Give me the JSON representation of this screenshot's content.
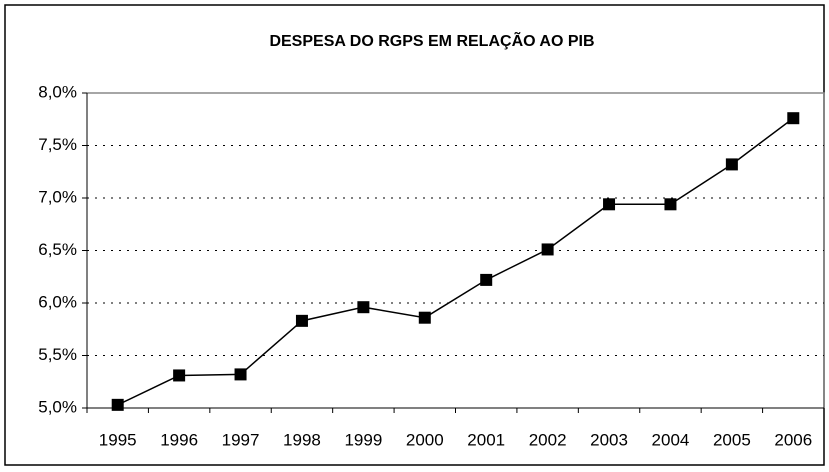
{
  "chart_data": {
    "type": "line",
    "title": "DESPESA DO RGPS EM RELAÇÃO AO PIB",
    "categories": [
      "1995",
      "1996",
      "1997",
      "1998",
      "1999",
      "2000",
      "2001",
      "2002",
      "2003",
      "2004",
      "2005",
      "2006"
    ],
    "series": [
      {
        "color": "#000000",
        "values": [
          5.03,
          5.31,
          5.32,
          5.83,
          5.96,
          5.86,
          6.22,
          6.51,
          6.94,
          6.94,
          7.32,
          7.76
        ]
      }
    ],
    "ylim": [
      5.0,
      8.0
    ],
    "yticks": [
      {
        "value": 5.0,
        "label": "5,0%"
      },
      {
        "value": 5.5,
        "label": "5,5%"
      },
      {
        "value": 6.0,
        "label": "6,0%"
      },
      {
        "value": 6.5,
        "label": "6,5%"
      },
      {
        "value": 7.0,
        "label": "7,0%"
      },
      {
        "value": 7.5,
        "label": "7,5%"
      },
      {
        "value": 8.0,
        "label": "8,0%"
      }
    ],
    "grid": true
  }
}
